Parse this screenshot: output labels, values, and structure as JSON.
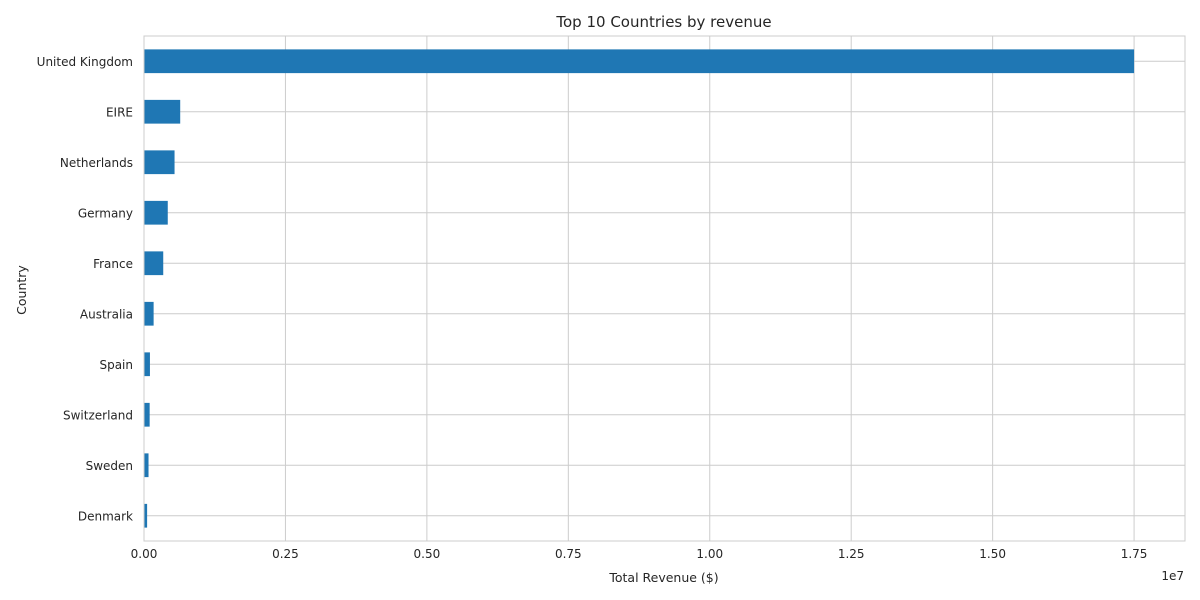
{
  "chart_data": {
    "type": "bar",
    "orientation": "horizontal",
    "title": "Top 10 Countries by revenue",
    "xlabel": "Total Revenue ($)",
    "ylabel": "Country",
    "x_offset_label": "1e7",
    "categories": [
      "United Kingdom",
      "EIRE",
      "Netherlands",
      "Germany",
      "France",
      "Australia",
      "Spain",
      "Switzerland",
      "Sweden",
      "Denmark"
    ],
    "values": [
      17500000,
      640000,
      540000,
      420000,
      340000,
      170000,
      105000,
      100000,
      80000,
      55000
    ],
    "xlim": [
      0,
      18400000
    ],
    "xticks": [
      0,
      2500000,
      5000000,
      7500000,
      10000000,
      12500000,
      15000000,
      17500000
    ],
    "xtick_labels": [
      "0.00",
      "0.25",
      "0.50",
      "0.75",
      "1.00",
      "1.25",
      "1.50",
      "1.75"
    ],
    "grid": true,
    "bar_color": "#1f77b4",
    "grid_color": "#cccccc",
    "spine_color": "#cccccc"
  }
}
